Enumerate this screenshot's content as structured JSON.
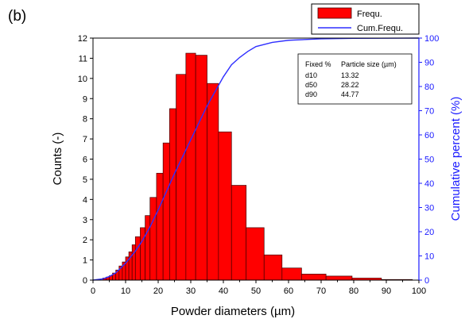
{
  "chart_data": {
    "type": "bar",
    "panel_label": "(b)",
    "xlabel": "Powder diameters (µm)",
    "ylabel": "Counts (-)",
    "y2label": "Cumulative percent (%)",
    "xlim": [
      0,
      100
    ],
    "ylim": [
      0,
      12
    ],
    "y2lim": [
      0,
      100
    ],
    "xticks": [
      0,
      10,
      20,
      30,
      40,
      50,
      60,
      70,
      80,
      90,
      100
    ],
    "yticks": [
      0,
      1,
      2,
      3,
      4,
      5,
      6,
      7,
      8,
      9,
      10,
      11,
      12
    ],
    "y2ticks": [
      0,
      10,
      20,
      30,
      40,
      50,
      60,
      70,
      80,
      90,
      100
    ],
    "grid": false,
    "legend_position": "top-right",
    "series": [
      {
        "name": "Frequ.",
        "type": "bar",
        "color": "#ff0000",
        "edge_color": "#400000",
        "bars": [
          {
            "x0": 3.0,
            "x1": 4.0,
            "value": 0.1
          },
          {
            "x0": 4.0,
            "x1": 5.0,
            "value": 0.15
          },
          {
            "x0": 5.0,
            "x1": 6.0,
            "value": 0.22
          },
          {
            "x0": 6.0,
            "x1": 7.0,
            "value": 0.35
          },
          {
            "x0": 7.0,
            "x1": 8.0,
            "value": 0.5
          },
          {
            "x0": 8.0,
            "x1": 9.0,
            "value": 0.7
          },
          {
            "x0": 9.0,
            "x1": 10.0,
            "value": 0.9
          },
          {
            "x0": 10.0,
            "x1": 11.0,
            "value": 1.15
          },
          {
            "x0": 11.0,
            "x1": 12.0,
            "value": 1.4
          },
          {
            "x0": 12.0,
            "x1": 13.0,
            "value": 1.75
          },
          {
            "x0": 13.0,
            "x1": 14.5,
            "value": 2.15
          },
          {
            "x0": 14.5,
            "x1": 16.0,
            "value": 2.6
          },
          {
            "x0": 16.0,
            "x1": 17.5,
            "value": 3.2
          },
          {
            "x0": 17.5,
            "x1": 19.5,
            "value": 4.1
          },
          {
            "x0": 19.5,
            "x1": 21.5,
            "value": 5.3
          },
          {
            "x0": 21.5,
            "x1": 23.5,
            "value": 6.8
          },
          {
            "x0": 23.5,
            "x1": 25.5,
            "value": 8.5
          },
          {
            "x0": 25.5,
            "x1": 28.5,
            "value": 10.2
          },
          {
            "x0": 28.5,
            "x1": 31.5,
            "value": 11.25
          },
          {
            "x0": 31.5,
            "x1": 35.0,
            "value": 11.15
          },
          {
            "x0": 35.0,
            "x1": 38.5,
            "value": 9.75
          },
          {
            "x0": 38.5,
            "x1": 42.5,
            "value": 7.35
          },
          {
            "x0": 42.5,
            "x1": 47.0,
            "value": 4.7
          },
          {
            "x0": 47.0,
            "x1": 52.5,
            "value": 2.6
          },
          {
            "x0": 52.5,
            "x1": 58.0,
            "value": 1.25
          },
          {
            "x0": 58.0,
            "x1": 64.0,
            "value": 0.6
          },
          {
            "x0": 64.0,
            "x1": 71.5,
            "value": 0.3
          },
          {
            "x0": 71.5,
            "x1": 79.5,
            "value": 0.2
          },
          {
            "x0": 79.5,
            "x1": 88.5,
            "value": 0.1
          },
          {
            "x0": 88.5,
            "x1": 98.0,
            "value": 0.03
          }
        ]
      },
      {
        "name": "Cum.Frequ.",
        "type": "line",
        "axis": "right",
        "color": "#2f2fff",
        "points": [
          [
            0,
            0
          ],
          [
            3,
            0.5
          ],
          [
            5,
            1.5
          ],
          [
            7,
            3
          ],
          [
            10,
            7
          ],
          [
            13,
            12
          ],
          [
            15,
            16
          ],
          [
            17.5,
            22
          ],
          [
            20,
            29
          ],
          [
            22.5,
            36.5
          ],
          [
            25,
            44
          ],
          [
            27.5,
            51
          ],
          [
            30,
            58
          ],
          [
            32.5,
            65
          ],
          [
            35,
            72
          ],
          [
            37.5,
            78
          ],
          [
            40,
            84
          ],
          [
            42.5,
            89
          ],
          [
            45,
            92
          ],
          [
            47.5,
            94.5
          ],
          [
            50,
            96.5
          ],
          [
            55,
            98.2
          ],
          [
            60,
            99.1
          ],
          [
            70,
            99.7
          ],
          [
            80,
            99.9
          ],
          [
            100,
            100
          ]
        ]
      }
    ],
    "stats_box": {
      "headers": [
        "Fixed %",
        "Particle size (µm)"
      ],
      "rows": [
        [
          "d10",
          "13.32"
        ],
        [
          "d50",
          "28.22"
        ],
        [
          "d90",
          "44.77"
        ]
      ]
    }
  }
}
